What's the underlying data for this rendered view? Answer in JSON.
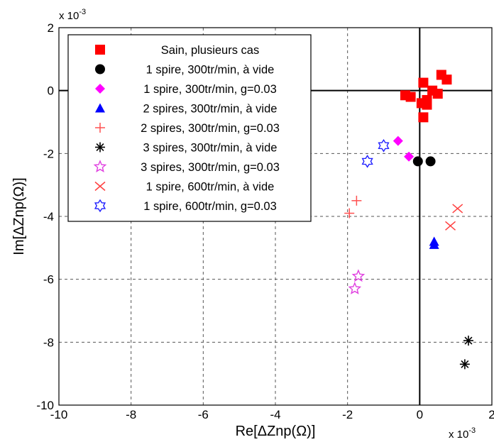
{
  "chart_data": {
    "type": "scatter",
    "title": "",
    "xlabel": "Re[ΔZnp(Ω)]",
    "ylabel": "Im[ΔZnp(Ω)]",
    "x_exponent_label": "x 10",
    "x_exponent_sup": "-3",
    "y_exponent_label": "x 10",
    "y_exponent_sup": "-3",
    "xlim": [
      -10,
      2
    ],
    "ylim": [
      -10,
      2
    ],
    "xticks": [
      "-10",
      "-8",
      "-6",
      "-4",
      "-2",
      "0",
      "2"
    ],
    "yticks": [
      "-10",
      "-8",
      "-6",
      "-4",
      "-2",
      "0",
      "2"
    ],
    "grid": true,
    "legend_position": "top-left",
    "series": [
      {
        "name": "Sain, plusieurs cas",
        "marker": "square",
        "color": "#ff0000",
        "points": [
          [
            0.1,
            0.25
          ],
          [
            0.6,
            0.5
          ],
          [
            0.75,
            0.35
          ],
          [
            0.35,
            0.0
          ],
          [
            0.5,
            -0.1
          ],
          [
            -0.4,
            -0.15
          ],
          [
            -0.25,
            -0.2
          ],
          [
            0.2,
            -0.3
          ],
          [
            0.05,
            -0.4
          ],
          [
            0.2,
            -0.45
          ],
          [
            0.1,
            -0.85
          ]
        ]
      },
      {
        "name": "1 spire, 300tr/min, à vide",
        "marker": "circle",
        "color": "#000000",
        "points": [
          [
            -0.05,
            -2.25
          ],
          [
            0.3,
            -2.25
          ]
        ]
      },
      {
        "name": "1 spire, 300tr/min, g=0.03",
        "marker": "diamond",
        "color": "#ff00ff",
        "points": [
          [
            -0.6,
            -1.6
          ],
          [
            -0.3,
            -2.1
          ]
        ]
      },
      {
        "name": "2 spires, 300tr/min, à vide",
        "marker": "triangle",
        "color": "#0000ff",
        "points": [
          [
            0.4,
            -4.8
          ],
          [
            0.4,
            -4.9
          ]
        ]
      },
      {
        "name": "2 spires, 300tr/min, g=0.03",
        "marker": "plus",
        "color": "#ff5050",
        "points": [
          [
            -1.75,
            -3.5
          ],
          [
            -1.95,
            -3.9
          ]
        ]
      },
      {
        "name": "3 spires, 300tr/min, à vide",
        "marker": "asterisk",
        "color": "#000000",
        "points": [
          [
            1.35,
            -7.95
          ],
          [
            1.25,
            -8.7
          ]
        ]
      },
      {
        "name": "3 spires, 300tr/min, g=0.03",
        "marker": "star",
        "color": "#e040e0",
        "points": [
          [
            -1.7,
            -5.9
          ],
          [
            -1.8,
            -6.3
          ]
        ]
      },
      {
        "name": "1 spire, 600tr/min, à vide",
        "marker": "x",
        "color": "#ff4040",
        "points": [
          [
            1.05,
            -3.75
          ],
          [
            0.85,
            -4.3
          ]
        ]
      },
      {
        "name": "1 spire, 600tr/min, g=0.03",
        "marker": "hexagram",
        "color": "#2020ff",
        "points": [
          [
            -1.45,
            -2.25
          ],
          [
            -1.0,
            -1.75
          ]
        ]
      }
    ]
  }
}
